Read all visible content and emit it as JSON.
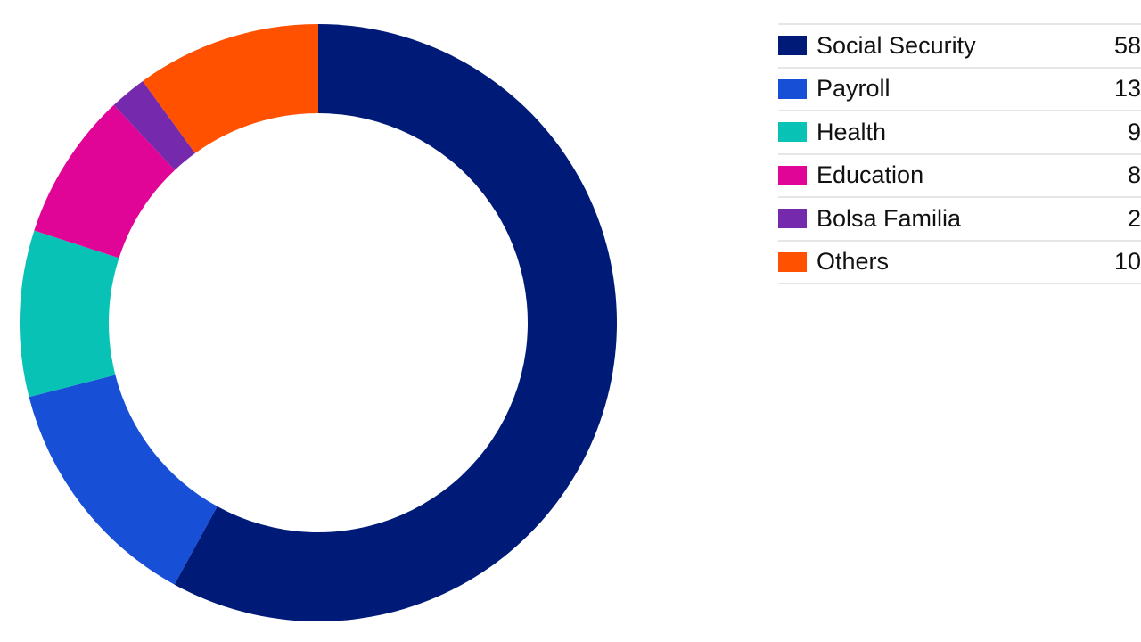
{
  "chart_data": {
    "type": "pie",
    "donut": true,
    "title": "",
    "legend_position": "right",
    "categories": [
      "Social Security",
      "Payroll",
      "Health",
      "Education",
      "Bolsa Familia",
      "Others"
    ],
    "values": [
      58,
      13,
      9,
      8,
      2,
      10
    ],
    "value_labels": [
      "58",
      "13",
      "9",
      "8",
      "2",
      "10"
    ],
    "colors": [
      "#001a78",
      "#1750d6",
      "#08c2b6",
      "#e00596",
      "#7529ad",
      "#ff5100"
    ]
  }
}
